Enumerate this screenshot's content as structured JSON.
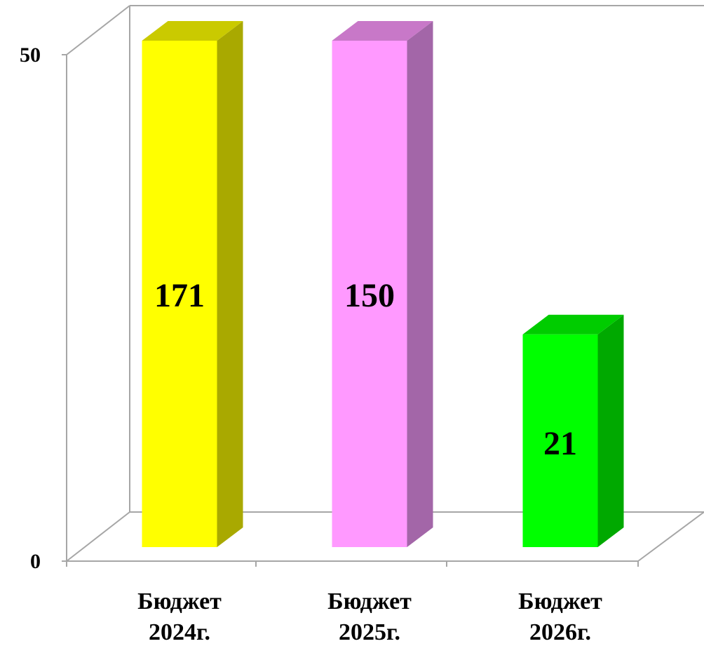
{
  "chart_data": {
    "type": "bar",
    "three_d": true,
    "categories": [
      [
        "Бюджет",
        "2024г."
      ],
      [
        "Бюджет",
        "2025г."
      ],
      [
        "Бюджет",
        "2026г."
      ]
    ],
    "series": [
      {
        "values": [
          171,
          150,
          21
        ],
        "value_labels": [
          "171",
          "150",
          "21"
        ],
        "colors": [
          {
            "front": "#ffff00",
            "side": "#a9a900",
            "top": "#caca00"
          },
          {
            "front": "#ff99ff",
            "side": "#a366a8",
            "top": "#c878c8"
          },
          {
            "front": "#00ff00",
            "side": "#00a900",
            "top": "#00cc00"
          }
        ]
      }
    ],
    "axis_ticks": [
      "0",
      "50"
    ],
    "bar_heights_in_axis_units": [
      50,
      50,
      21
    ],
    "ylim": [
      0,
      50
    ],
    "grid": false,
    "legend": "none",
    "title": "",
    "xlabel": "",
    "ylabel": ""
  }
}
